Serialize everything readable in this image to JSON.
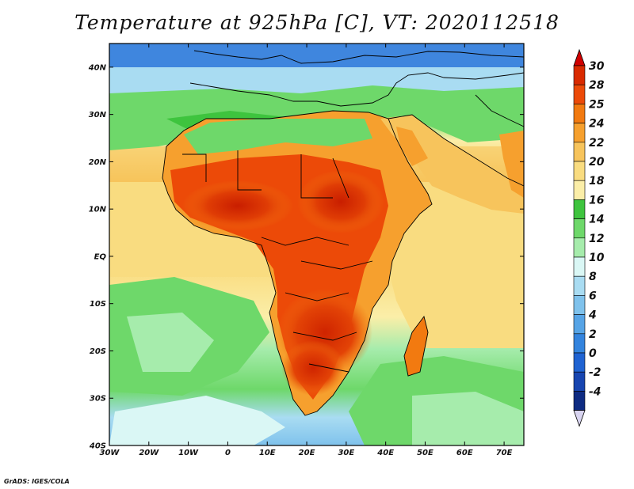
{
  "title": "Temperature at 925hPa [C], VT: 2020112518",
  "credit": "GrADS: IGES/COLA",
  "map": {
    "lon_range": [
      -30,
      75
    ],
    "lat_range": [
      -40,
      45
    ],
    "lon_ticks": [
      {
        "value": -30,
        "label": "30W"
      },
      {
        "value": -20,
        "label": "20W"
      },
      {
        "value": -10,
        "label": "10W"
      },
      {
        "value": 0,
        "label": "0"
      },
      {
        "value": 10,
        "label": "10E"
      },
      {
        "value": 20,
        "label": "20E"
      },
      {
        "value": 30,
        "label": "30E"
      },
      {
        "value": 40,
        "label": "40E"
      },
      {
        "value": 50,
        "label": "50E"
      },
      {
        "value": 60,
        "label": "60E"
      },
      {
        "value": 70,
        "label": "70E"
      }
    ],
    "lat_ticks": [
      {
        "value": 40,
        "label": "40N"
      },
      {
        "value": 30,
        "label": "30N"
      },
      {
        "value": 20,
        "label": "20N"
      },
      {
        "value": 10,
        "label": "10N"
      },
      {
        "value": 0,
        "label": "EQ"
      },
      {
        "value": -10,
        "label": "10S"
      },
      {
        "value": -20,
        "label": "20S"
      },
      {
        "value": -30,
        "label": "30S"
      },
      {
        "value": -40,
        "label": "40S"
      }
    ]
  },
  "colorbar": {
    "labels": [
      "30",
      "28",
      "25",
      "24",
      "22",
      "20",
      "18",
      "16",
      "14",
      "12",
      "10",
      "8",
      "6",
      "4",
      "2",
      "0",
      "-2",
      "-4"
    ],
    "colors": [
      "#d92a00",
      "#ec4a08",
      "#f27a10",
      "#f6a02e",
      "#f7c45c",
      "#f9dc80",
      "#fbeea8",
      "#3ec43e",
      "#6ed86a",
      "#a6ecac",
      "#daf7f5",
      "#a9dcf2",
      "#7fc2ec",
      "#56a4e6",
      "#3384de",
      "#1f63d2",
      "#1745b0",
      "#0e2b82"
    ],
    "top_color": "#d00000",
    "bottom_color": "#d8d4f0"
  }
}
